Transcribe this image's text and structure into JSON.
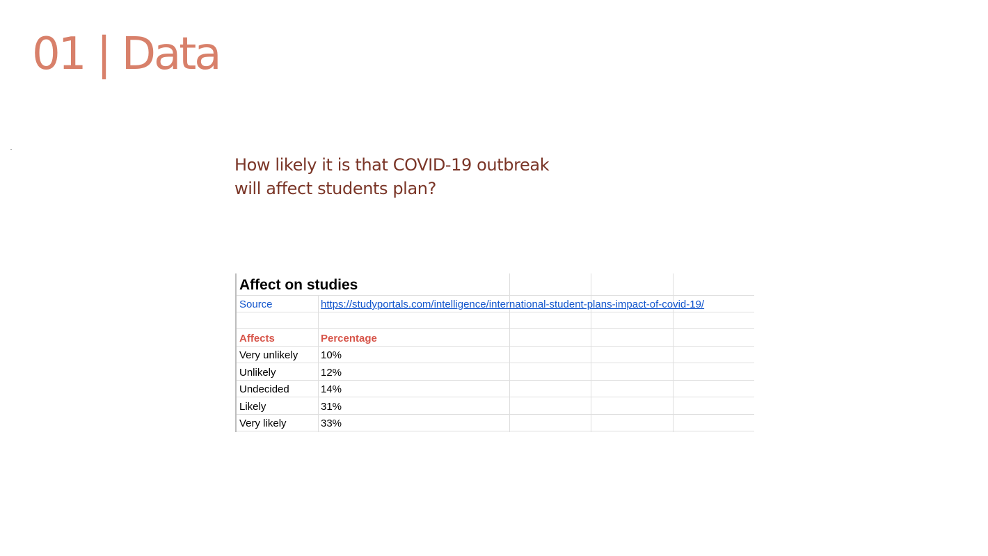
{
  "slide": {
    "title": "01 | Data",
    "question_line1": "How likely it is that COVID-19 outbreak",
    "question_line2": "will affect students plan?"
  },
  "sheet": {
    "title": "Affect on studies",
    "source_label": "Source",
    "source_url": "https://studyportals.com/intelligence/international-student-plans-impact-of-covid-19/",
    "headers": [
      "Affects",
      "Percentage"
    ],
    "rows": [
      [
        "Very unlikely",
        "10%"
      ],
      [
        "Unlikely",
        "12%"
      ],
      [
        "Undecided",
        "14%"
      ],
      [
        "Likely",
        "31%"
      ],
      [
        "Very likely",
        "33%"
      ]
    ]
  },
  "colors": {
    "title": "#d8806a",
    "question": "#7a3527",
    "header": "#d7554a",
    "link": "#1155cc"
  }
}
